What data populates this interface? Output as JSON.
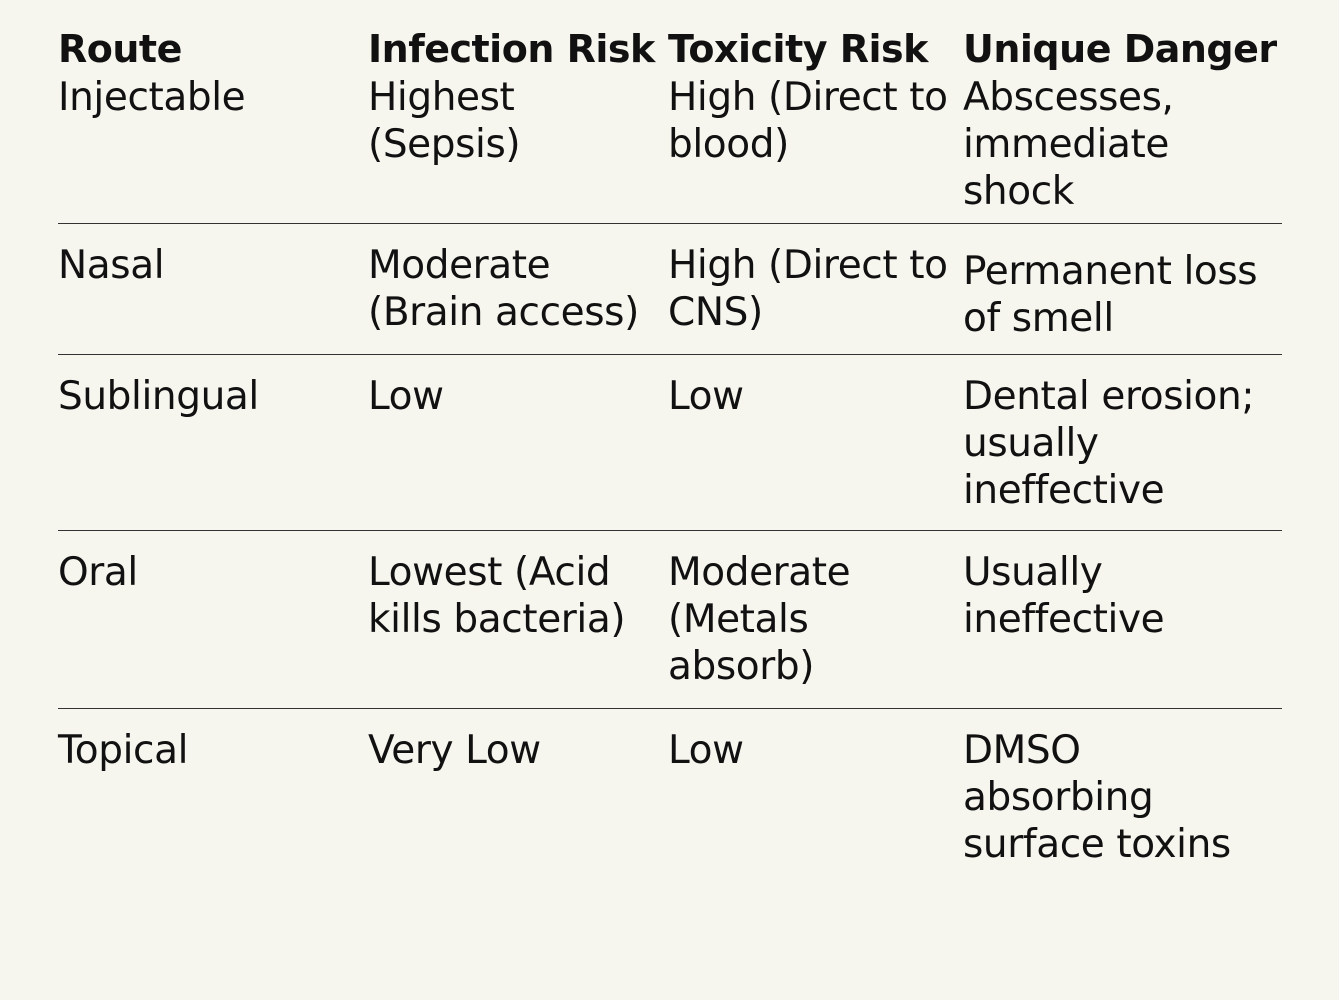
{
  "table": {
    "headers": {
      "route": "Route",
      "infection_risk": "Infection Risk",
      "toxicity_risk": "Toxicity Risk",
      "unique_danger": "Unique Danger"
    },
    "rows": [
      {
        "route": "Injectable",
        "infection_risk": "Highest (Sepsis)",
        "toxicity_risk": "High (Direct to blood)",
        "unique_danger": "Abscesses, immediate shock"
      },
      {
        "route": "Nasal",
        "infection_risk": "Moderate (Brain access)",
        "toxicity_risk": "High (Direct to CNS)",
        "unique_danger": "Permanent loss of smell"
      },
      {
        "route": "Sublingual",
        "infection_risk": "Low",
        "toxicity_risk": "Low",
        "unique_danger": "Dental erosion; usually ineffective"
      },
      {
        "route": "Oral",
        "infection_risk": "Lowest (Acid kills bacteria)",
        "toxicity_risk": "Moderate (Metals absorb)",
        "unique_danger": "Usually ineffective"
      },
      {
        "route": "Topical",
        "infection_risk": "Very Low",
        "toxicity_risk": "Low",
        "unique_danger": "DMSO absorbing surface toxins"
      }
    ]
  }
}
